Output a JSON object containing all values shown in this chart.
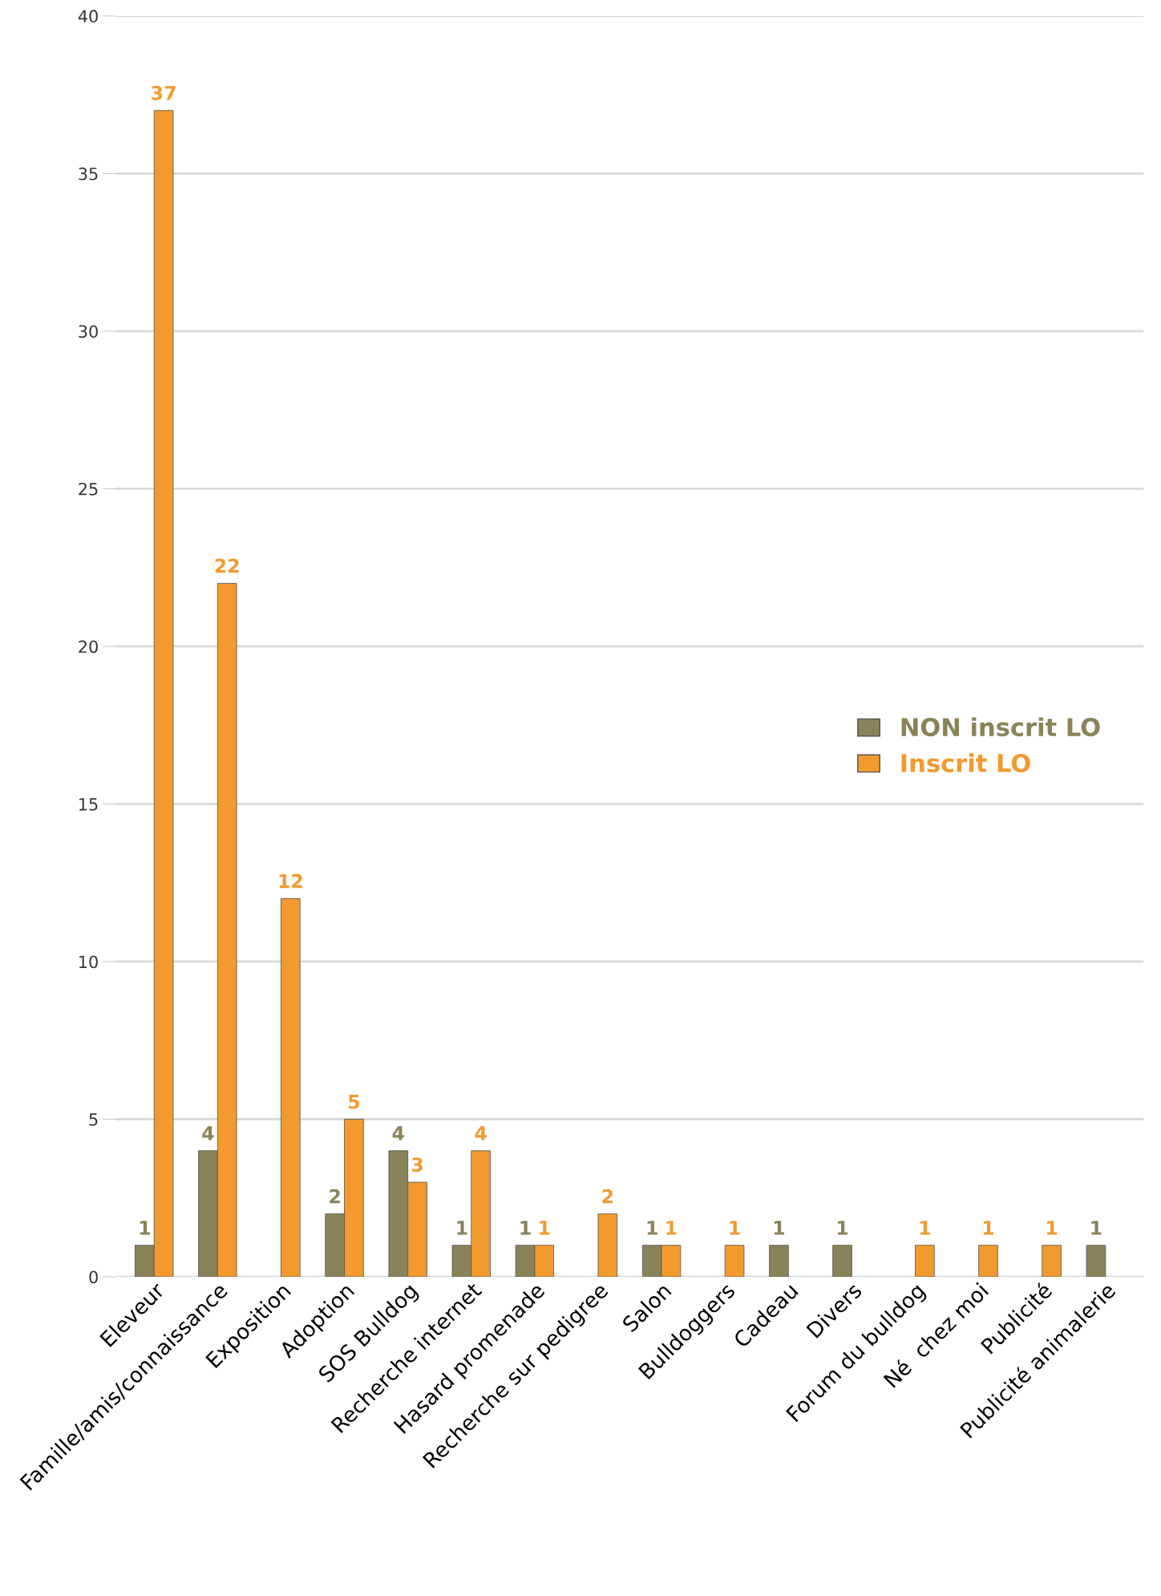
{
  "chart_data": {
    "type": "bar",
    "categories": [
      "Eleveur",
      "Famille/amis/connaissance",
      "Exposition",
      "Adoption",
      "SOS Bulldog",
      "Recherche internet",
      "Hasard promenade",
      "Recherche sur pedigree",
      "Salon",
      "Bulldoggers",
      "Cadeau",
      "Divers",
      "Forum du bulldog",
      "Né  chez moi",
      "Publicité",
      "Publicité animalerie"
    ],
    "series": [
      {
        "name": "NON inscrit LO",
        "color": "#8a8259",
        "values": [
          1,
          4,
          null,
          2,
          4,
          1,
          1,
          null,
          1,
          null,
          1,
          1,
          null,
          null,
          null,
          1
        ]
      },
      {
        "name": "Inscrit LO",
        "color": "#f39a2e",
        "values": [
          37,
          22,
          12,
          5,
          3,
          4,
          1,
          2,
          1,
          1,
          null,
          null,
          1,
          1,
          1,
          null
        ]
      }
    ],
    "ylim": [
      0,
      40
    ],
    "yticks": [
      0,
      5,
      10,
      15,
      20,
      25,
      30,
      35,
      40
    ],
    "grid": "y",
    "legend": "right",
    "data_labels": true
  }
}
